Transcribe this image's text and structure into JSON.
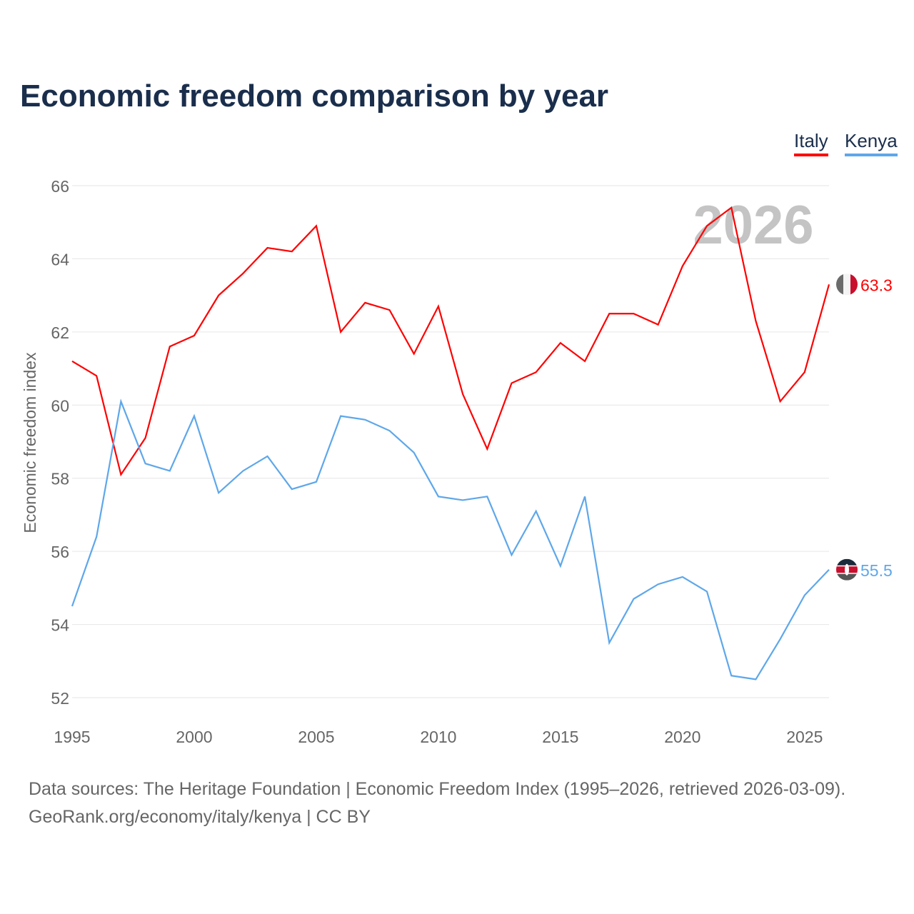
{
  "title": "Economic freedom comparison by year",
  "legend": [
    "Italy",
    "Kenya"
  ],
  "watermark_year": "2026",
  "footer": {
    "line1": "Data sources: The Heritage Foundation | Economic Freedom Index (1995–2026, retrieved 2026-03-09).",
    "line2": "GeoRank.org/economy/italy/kenya | CC BY"
  },
  "chart_data": {
    "type": "line",
    "title": "Economic freedom comparison by year",
    "xlabel": "",
    "ylabel": "Economic freedom index",
    "xlim": [
      1995,
      2026
    ],
    "ylim": [
      52,
      66
    ],
    "xticks": [
      "1995",
      "2000",
      "2005",
      "2010",
      "2015",
      "2020",
      "2025"
    ],
    "yticks": [
      "52",
      "54",
      "56",
      "58",
      "60",
      "62",
      "64",
      "66"
    ],
    "grid": true,
    "legend_position": "top-right",
    "x": [
      1995,
      1996,
      1997,
      1998,
      1999,
      2000,
      2001,
      2002,
      2003,
      2004,
      2005,
      2006,
      2007,
      2008,
      2009,
      2010,
      2011,
      2012,
      2013,
      2014,
      2015,
      2016,
      2017,
      2018,
      2019,
      2020,
      2021,
      2022,
      2023,
      2024,
      2025,
      2026
    ],
    "series": [
      {
        "name": "Italy",
        "color": "#ff0000",
        "end_label": "63.3",
        "values": [
          61.2,
          60.8,
          58.1,
          59.1,
          61.6,
          61.9,
          63.0,
          63.6,
          64.3,
          64.2,
          64.9,
          62.0,
          62.8,
          62.6,
          61.4,
          62.7,
          60.3,
          58.8,
          60.6,
          60.9,
          61.7,
          61.2,
          62.5,
          62.5,
          62.2,
          63.8,
          64.9,
          65.4,
          62.3,
          60.1,
          60.9,
          63.3
        ]
      },
      {
        "name": "Kenya",
        "color": "#5ea7ea",
        "end_label": "55.5",
        "values": [
          54.5,
          56.4,
          60.1,
          58.4,
          58.2,
          59.7,
          57.6,
          58.2,
          58.6,
          57.7,
          57.9,
          59.7,
          59.6,
          59.3,
          58.7,
          57.5,
          57.4,
          57.5,
          55.9,
          57.1,
          55.6,
          57.5,
          53.5,
          54.7,
          55.1,
          55.3,
          54.9,
          52.6,
          52.5,
          53.6,
          54.8,
          55.5
        ]
      }
    ]
  }
}
